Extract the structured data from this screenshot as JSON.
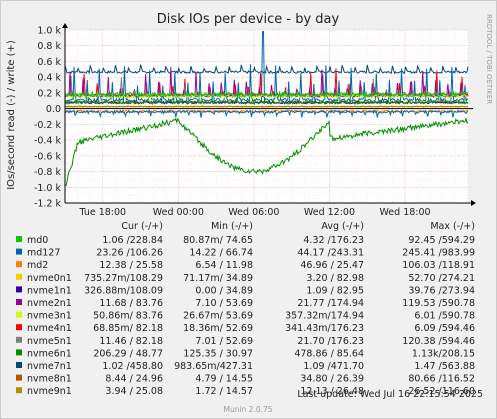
{
  "chart_data": {
    "type": "line",
    "title": "Disk IOs per device - by day",
    "ylabel": "IOs/second read (-) / write (+)",
    "watermark": "RRDTOOL / TOBI OETIKER",
    "ylim": [
      -1200,
      1000
    ],
    "yticks": [
      {
        "v": 1000,
        "label": "1.0 k"
      },
      {
        "v": 800,
        "label": "0.8 k"
      },
      {
        "v": 600,
        "label": "0.6 k"
      },
      {
        "v": 400,
        "label": "0.4 k"
      },
      {
        "v": 200,
        "label": "0.2 k"
      },
      {
        "v": 0,
        "label": "0.0"
      },
      {
        "v": -200,
        "label": "-0.2 k"
      },
      {
        "v": -400,
        "label": "-0.4 k"
      },
      {
        "v": -600,
        "label": "-0.6 k"
      },
      {
        "v": -800,
        "label": "-0.8 k"
      },
      {
        "v": -1000,
        "label": "-1.0 k"
      },
      {
        "v": -1200,
        "label": "-1.2 k"
      }
    ],
    "xrange_hours": [
      0,
      32
    ],
    "xticks": [
      {
        "h": 3,
        "label": "Tue 18:00"
      },
      {
        "h": 9,
        "label": "Wed 00:00"
      },
      {
        "h": 15,
        "label": "Wed 06:00"
      },
      {
        "h": 21,
        "label": "Wed 12:00"
      },
      {
        "h": 27,
        "label": "Wed 18:00"
      }
    ],
    "grid": true,
    "series": [
      {
        "name": "md0",
        "color": "#00cc00",
        "cur": "1.06 /228.84",
        "min": "80.87m/ 74.65",
        "avg": "4.32 /176.23",
        "max": "92.45 /594.29"
      },
      {
        "name": "md127",
        "color": "#0066b3",
        "cur": "23.26 /106.26",
        "min": "14.22 / 66.74",
        "avg": "44.17 /243.31",
        "max": "245.41 /983.99"
      },
      {
        "name": "md2",
        "color": "#ff8000",
        "cur": "12.38 / 25.58",
        "min": "6.54 / 11.98",
        "avg": "46.96 / 25.47",
        "max": "106.03 /118.91"
      },
      {
        "name": "nvme0n1",
        "color": "#ffcc00",
        "cur": "735.27m/108.29",
        "min": "71.17m/ 34.89",
        "avg": "3.20 / 82.98",
        "max": "52.70 /274.21"
      },
      {
        "name": "nvme1n1",
        "color": "#330099",
        "cur": "326.88m/108.09",
        "min": "0.00 / 34.89",
        "avg": "1.09 / 82.95",
        "max": "39.76 /273.94"
      },
      {
        "name": "nvme2n1",
        "color": "#990099",
        "cur": "11.68 / 83.76",
        "min": "7.10 / 53.69",
        "avg": "21.77 /174.94",
        "max": "119.53 /590.78"
      },
      {
        "name": "nvme3n1",
        "color": "#ccff00",
        "cur": "50.86m/ 83.76",
        "min": "26.67m/ 53.69",
        "avg": "357.32m/174.94",
        "max": "6.01 /590.78"
      },
      {
        "name": "nvme4n1",
        "color": "#ff0000",
        "cur": "68.85m/ 82.18",
        "min": "18.36m/ 52.69",
        "avg": "341.43m/176.23",
        "max": "6.09 /594.46"
      },
      {
        "name": "nvme5n1",
        "color": "#808080",
        "cur": "11.46 / 82.18",
        "min": "7.01 / 52.69",
        "avg": "21.70 /176.23",
        "max": "120.38 /594.46"
      },
      {
        "name": "nvme6n1",
        "color": "#008f00",
        "cur": "206.29 / 48.77",
        "min": "125.35 / 30.97",
        "avg": "478.86 / 85.64",
        "max": "1.13k/208.15"
      },
      {
        "name": "nvme7n1",
        "color": "#00487d",
        "cur": "1.02 /458.80",
        "min": "983.65m/427.31",
        "avg": "1.09 /471.70",
        "max": "1.47 /563.88"
      },
      {
        "name": "nvme8n1",
        "color": "#b35a00",
        "cur": "8.44 / 24.96",
        "min": "4.79 / 14.55",
        "avg": "34.80 / 26.39",
        "max": "80.66 /116.52"
      },
      {
        "name": "nvme9n1",
        "color": "#b38f00",
        "cur": "3.94 / 25.08",
        "min": "1.72 / 14.57",
        "avg": "12.13 / 26.48",
        "max": "26.52 /116.60"
      }
    ],
    "legend_headers": {
      "cur": "Cur (-/+)",
      "min": "Min (-/+)",
      "avg": "Avg (-/+)",
      "max": "Max (-/+)"
    },
    "last_update": "Last update:  Wed Jul 16 22:15:54 2025",
    "footer": "Munin 2.0.75"
  }
}
